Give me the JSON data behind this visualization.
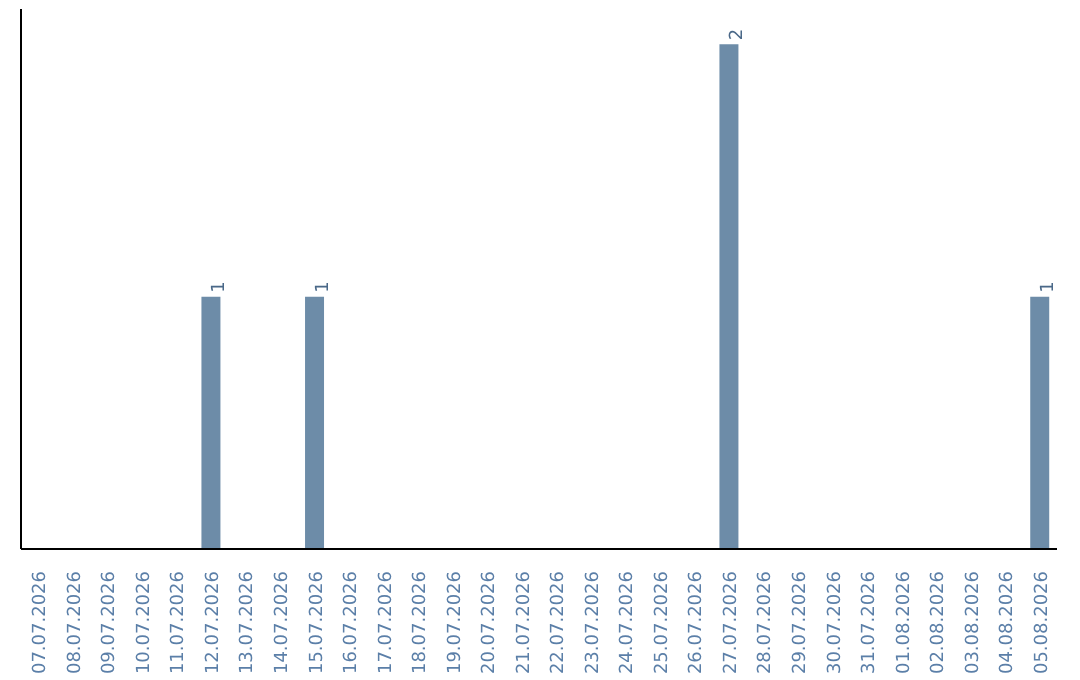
{
  "chart_data": {
    "type": "bar",
    "categories": [
      "07.07.2026",
      "08.07.2026",
      "09.07.2026",
      "10.07.2026",
      "11.07.2026",
      "12.07.2026",
      "13.07.2026",
      "14.07.2026",
      "15.07.2026",
      "16.07.2026",
      "17.07.2026",
      "18.07.2026",
      "19.07.2026",
      "20.07.2026",
      "21.07.2026",
      "22.07.2026",
      "23.07.2026",
      "24.07.2026",
      "25.07.2026",
      "26.07.2026",
      "27.07.2026",
      "28.07.2026",
      "29.07.2026",
      "30.07.2026",
      "31.07.2026",
      "01.08.2026",
      "02.08.2026",
      "03.08.2026",
      "04.08.2026",
      "05.08.2026"
    ],
    "values": [
      0,
      0,
      0,
      0,
      0,
      1,
      0,
      0,
      1,
      0,
      0,
      0,
      0,
      0,
      0,
      0,
      0,
      0,
      0,
      0,
      2,
      0,
      0,
      0,
      0,
      0,
      0,
      0,
      0,
      1
    ],
    "value_labels": [
      null,
      null,
      null,
      null,
      null,
      "1",
      null,
      null,
      "1",
      null,
      null,
      null,
      null,
      null,
      null,
      null,
      null,
      null,
      null,
      null,
      "2",
      null,
      null,
      null,
      null,
      null,
      null,
      null,
      null,
      "1"
    ],
    "color": "#6d8ca8",
    "tick_labels": "x",
    "grid": false
  }
}
